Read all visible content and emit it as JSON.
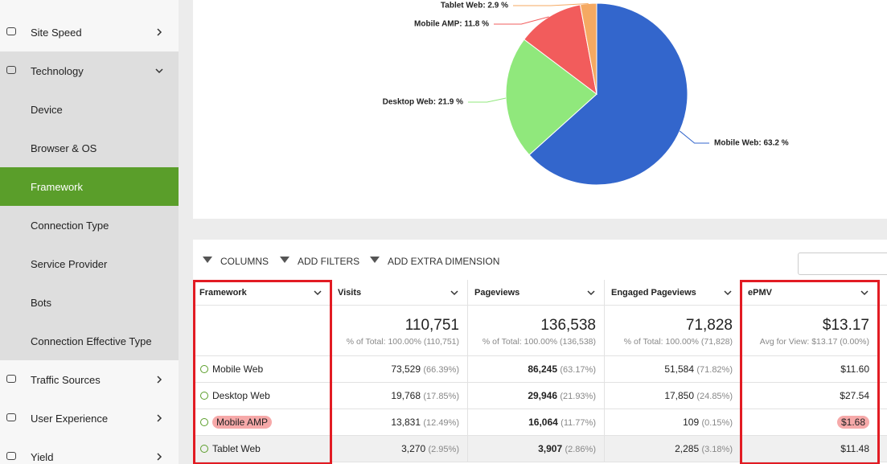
{
  "sidebar": {
    "items": [
      "Site Speed",
      "Technology",
      "Device",
      "Browser & OS",
      "Framework",
      "Connection Type",
      "Service Provider",
      "Bots",
      "Connection Effective Type",
      "Traffic Sources",
      "User Experience",
      "Yield"
    ]
  },
  "chart_data": {
    "type": "pie",
    "categories": [
      "Mobile Web",
      "Desktop Web",
      "Mobile AMP",
      "Tablet Web"
    ],
    "values": [
      63.2,
      21.9,
      11.8,
      2.9
    ],
    "value_labels": [
      "Mobile Web: 63.2 %",
      "Desktop Web: 21.9 %",
      "Mobile AMP: 11.8 %",
      "Tablet Web: 2.9 %"
    ],
    "colors": [
      "#3366cc",
      "#90e87c",
      "#f25c5c",
      "#f5a962"
    ]
  },
  "toolbar": [
    "COLUMNS",
    "ADD FILTERS",
    "ADD EXTRA DIMENSION"
  ],
  "table": {
    "columns": [
      "Framework",
      "Visits",
      "Pageviews",
      "Engaged Pageviews",
      "ePMV"
    ],
    "totals": [
      {
        "value": "110,751",
        "note": "% of Total: 100.00% (110,751)"
      },
      {
        "value": "136,538",
        "note": "% of Total: 100.00% (136,538)"
      },
      {
        "value": "71,828",
        "note": "% of Total: 100.00% (71,828)"
      },
      {
        "value": "$13.17",
        "note": "Avg for View: $13.17 (0.00%)"
      }
    ],
    "rows": [
      [
        "Mobile Web",
        {
          "value": "73,529",
          "share": "(66.39%)"
        },
        {
          "value": "86,245",
          "share": "(63.17%)"
        },
        {
          "value": "51,584",
          "share": "(71.82%)"
        },
        "$11.60"
      ],
      [
        "Desktop Web",
        {
          "value": "19,768",
          "share": "(17.85%)"
        },
        {
          "value": "29,946",
          "share": "(21.93%)"
        },
        {
          "value": "17,850",
          "share": "(24.85%)"
        },
        "$27.54"
      ],
      [
        "Mobile AMP",
        {
          "value": "13,831",
          "share": "(12.49%)"
        },
        {
          "value": "16,064",
          "share": "(11.77%)"
        },
        {
          "value": "109",
          "share": "(0.15%)"
        },
        "$1.68"
      ],
      [
        "Tablet Web",
        {
          "value": "3,270",
          "share": "(2.95%)"
        },
        {
          "value": "3,907",
          "share": "(2.86%)"
        },
        {
          "value": "2,285",
          "share": "(3.18%)"
        },
        "$11.48"
      ]
    ]
  }
}
